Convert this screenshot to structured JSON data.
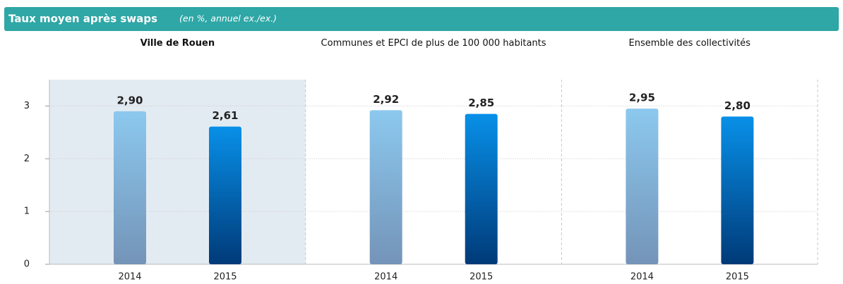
{
  "header": {
    "title": "Taux moyen après swaps",
    "subtitle": "(en %, annuel ex./ex.)"
  },
  "chart_data": [
    {
      "type": "bar",
      "title": "Ville de Rouen",
      "highlight": true,
      "categories": [
        "2014",
        "2015"
      ],
      "values": [
        2.9,
        2.61
      ],
      "value_labels": [
        "2,90",
        "2,61"
      ],
      "colors": [
        [
          "#8cc8ee",
          "#7494b8"
        ],
        [
          "#0890e8",
          "#003a78"
        ]
      ],
      "ylim": [
        0,
        3.5
      ],
      "yticks": [
        0,
        1,
        2,
        3
      ],
      "grid": true
    },
    {
      "type": "bar",
      "title": "Communes et EPCI de plus de 100 000 habitants",
      "highlight": false,
      "categories": [
        "2014",
        "2015"
      ],
      "values": [
        2.92,
        2.85
      ],
      "value_labels": [
        "2,92",
        "2,85"
      ],
      "colors": [
        [
          "#8cc8ee",
          "#7494b8"
        ],
        [
          "#0890e8",
          "#003a78"
        ]
      ],
      "ylim": [
        0,
        3.5
      ],
      "yticks": [
        0,
        1,
        2,
        3
      ],
      "grid": true
    },
    {
      "type": "bar",
      "title": "Ensemble des collectivités",
      "highlight": false,
      "categories": [
        "2014",
        "2015"
      ],
      "values": [
        2.95,
        2.8
      ],
      "value_labels": [
        "2,95",
        "2,80"
      ],
      "colors": [
        [
          "#8cc8ee",
          "#7494b8"
        ],
        [
          "#0890e8",
          "#003a78"
        ]
      ],
      "ylim": [
        0,
        3.5
      ],
      "yticks": [
        0,
        1,
        2,
        3
      ],
      "grid": true
    }
  ]
}
